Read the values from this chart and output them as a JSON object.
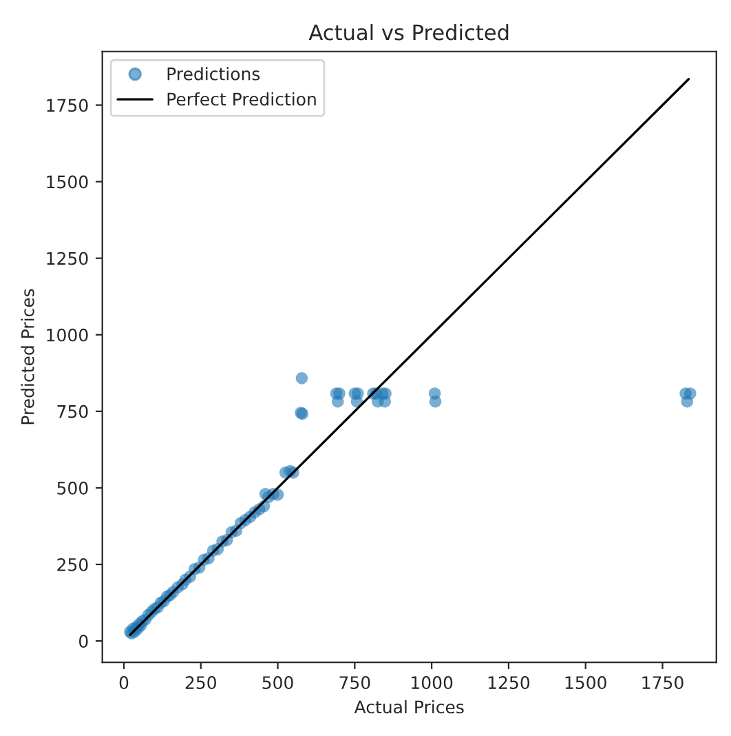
{
  "chart_data": {
    "type": "scatter",
    "title": "Actual vs Predicted",
    "xlabel": "Actual Prices",
    "ylabel": "Predicted Prices",
    "xlim": [
      -70,
      1925
    ],
    "ylim": [
      -70,
      1925
    ],
    "xticks": [
      0,
      250,
      500,
      750,
      1000,
      1250,
      1500,
      1750
    ],
    "yticks": [
      0,
      250,
      500,
      750,
      1000,
      1250,
      1500,
      1750
    ],
    "legend": "top left",
    "grid": false,
    "series": [
      {
        "name": "Predictions",
        "marker": "circle",
        "color": "#1f77b4",
        "x": [
          20,
          25,
          30,
          35,
          40,
          45,
          50,
          55,
          60,
          70,
          80,
          90,
          100,
          110,
          120,
          130,
          140,
          150,
          160,
          175,
          190,
          200,
          215,
          230,
          245,
          260,
          275,
          290,
          305,
          320,
          335,
          350,
          365,
          380,
          395,
          410,
          425,
          440,
          455,
          460,
          470,
          485,
          500,
          525,
          540,
          550,
          575,
          580,
          578,
          690,
          700,
          695,
          750,
          760,
          757,
          810,
          820,
          825,
          840,
          850,
          848,
          1010,
          1012,
          1825,
          1840,
          1830
        ],
        "values": [
          30,
          25,
          40,
          30,
          45,
          40,
          55,
          50,
          65,
          70,
          85,
          95,
          105,
          110,
          125,
          130,
          145,
          150,
          160,
          175,
          185,
          200,
          210,
          235,
          240,
          265,
          270,
          295,
          300,
          325,
          330,
          355,
          360,
          385,
          395,
          405,
          420,
          430,
          440,
          480,
          470,
          480,
          478,
          550,
          555,
          550,
          745,
          742,
          858,
          808,
          808,
          782,
          808,
          808,
          782,
          808,
          808,
          782,
          808,
          808,
          782,
          808,
          782,
          808,
          808,
          782
        ]
      },
      {
        "name": "Perfect Prediction",
        "type": "line",
        "marker": "none",
        "color": "#000000",
        "x": [
          20,
          1835
        ],
        "values": [
          20,
          1835
        ]
      }
    ]
  }
}
